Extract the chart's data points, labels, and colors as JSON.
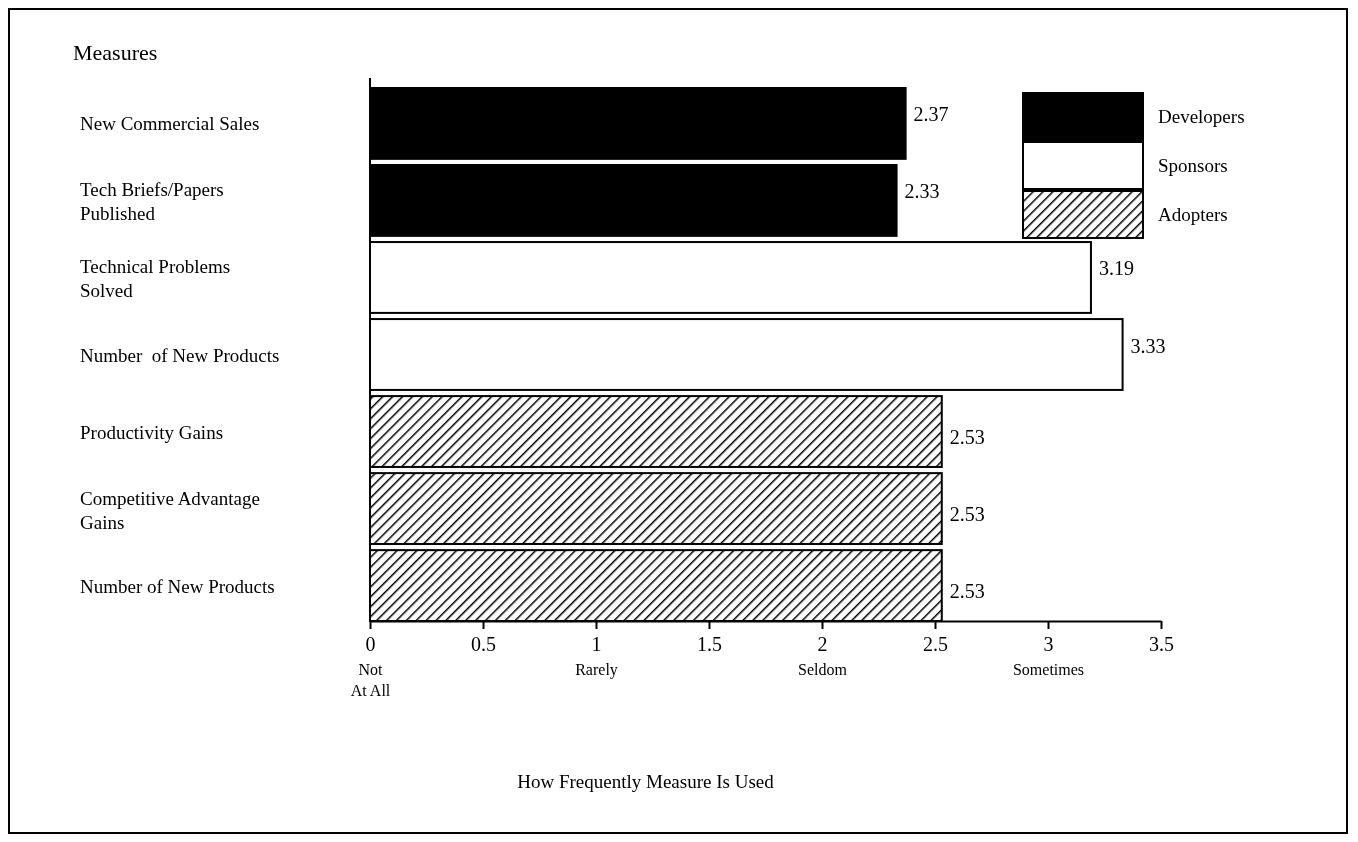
{
  "chart_data": {
    "type": "bar",
    "orientation": "horizontal",
    "title": "Measures",
    "categories": [
      "New Commercial Sales",
      "Tech Briefs/Papers\nPublished",
      "Technical Problems\nSolved",
      "Number  of New Products",
      "Productivity Gains",
      "Competitive Advantage\nGains",
      "Number of New Products"
    ],
    "series": [
      {
        "name": "Developers",
        "color": "#000000",
        "values": [
          2.37,
          2.33,
          null,
          null,
          null,
          null,
          null
        ]
      },
      {
        "name": "Sponsors",
        "color": "#ffffff",
        "values": [
          null,
          null,
          3.19,
          3.33,
          null,
          null,
          null
        ]
      },
      {
        "name": "Adopters",
        "color": "#000000",
        "values": [
          null,
          null,
          null,
          null,
          2.53,
          2.53,
          2.53
        ]
      }
    ],
    "xlim": [
      0,
      3.5
    ],
    "xticks": [
      {
        "value": 0,
        "label": "0\nNot\nAt All"
      },
      0.5,
      {
        "value": 1,
        "label": "1\nRarely"
      },
      1.5,
      {
        "value": 2,
        "label": "2\nSeldom"
      },
      2.5,
      {
        "value": 3,
        "label": "3\nSometimes"
      },
      3.5
    ],
    "data_labels": true,
    "legend": "top right",
    "grid": false,
    "annotations": [
      "How Frequently Measure Is Used"
    ]
  }
}
